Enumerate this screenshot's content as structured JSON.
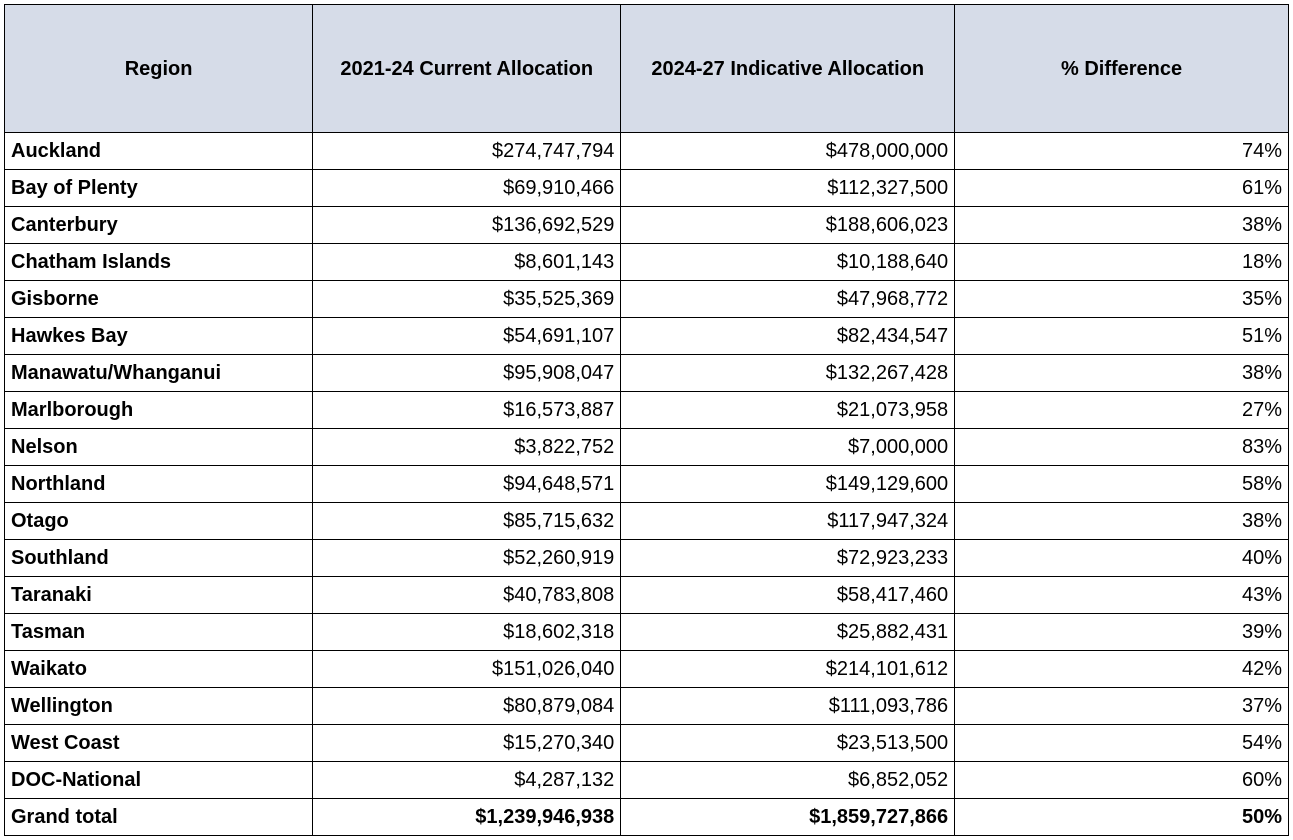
{
  "table": {
    "header_bg": "#d6dce8",
    "border_color": "#000000",
    "columns": [
      {
        "label": "Region",
        "align": "center"
      },
      {
        "label": "2021-24 Current Allocation",
        "align": "center"
      },
      {
        "label": "2024-27 Indicative Allocation",
        "align": "center"
      },
      {
        "label": "% Difference",
        "align": "center"
      }
    ],
    "rows": [
      {
        "region": "Auckland",
        "current": "$274,747,794",
        "indicative": "$478,000,000",
        "diff": "74%"
      },
      {
        "region": "Bay of Plenty",
        "current": "$69,910,466",
        "indicative": "$112,327,500",
        "diff": "61%"
      },
      {
        "region": "Canterbury",
        "current": "$136,692,529",
        "indicative": "$188,606,023",
        "diff": "38%"
      },
      {
        "region": "Chatham Islands",
        "current": "$8,601,143",
        "indicative": "$10,188,640",
        "diff": "18%"
      },
      {
        "region": "Gisborne",
        "current": "$35,525,369",
        "indicative": "$47,968,772",
        "diff": "35%"
      },
      {
        "region": "Hawkes Bay",
        "current": "$54,691,107",
        "indicative": "$82,434,547",
        "diff": "51%"
      },
      {
        "region": "Manawatu/Whanganui",
        "current": "$95,908,047",
        "indicative": "$132,267,428",
        "diff": "38%"
      },
      {
        "region": "Marlborough",
        "current": "$16,573,887",
        "indicative": "$21,073,958",
        "diff": "27%"
      },
      {
        "region": "Nelson",
        "current": "$3,822,752",
        "indicative": "$7,000,000",
        "diff": "83%"
      },
      {
        "region": "Northland",
        "current": "$94,648,571",
        "indicative": "$149,129,600",
        "diff": "58%"
      },
      {
        "region": "Otago",
        "current": "$85,715,632",
        "indicative": "$117,947,324",
        "diff": "38%"
      },
      {
        "region": "Southland",
        "current": "$52,260,919",
        "indicative": "$72,923,233",
        "diff": "40%"
      },
      {
        "region": "Taranaki",
        "current": "$40,783,808",
        "indicative": "$58,417,460",
        "diff": "43%"
      },
      {
        "region": "Tasman",
        "current": "$18,602,318",
        "indicative": "$25,882,431",
        "diff": "39%"
      },
      {
        "region": "Waikato",
        "current": "$151,026,040",
        "indicative": "$214,101,612",
        "diff": "42%"
      },
      {
        "region": "Wellington",
        "current": "$80,879,084",
        "indicative": "$111,093,786",
        "diff": "37%"
      },
      {
        "region": "West Coast",
        "current": "$15,270,340",
        "indicative": "$23,513,500",
        "diff": "54%"
      },
      {
        "region": "DOC-National",
        "current": "$4,287,132",
        "indicative": "$6,852,052",
        "diff": "60%"
      }
    ],
    "grand_total": {
      "region": "Grand total",
      "current": "$1,239,946,938",
      "indicative": "$1,859,727,866",
      "diff": "50%"
    }
  }
}
